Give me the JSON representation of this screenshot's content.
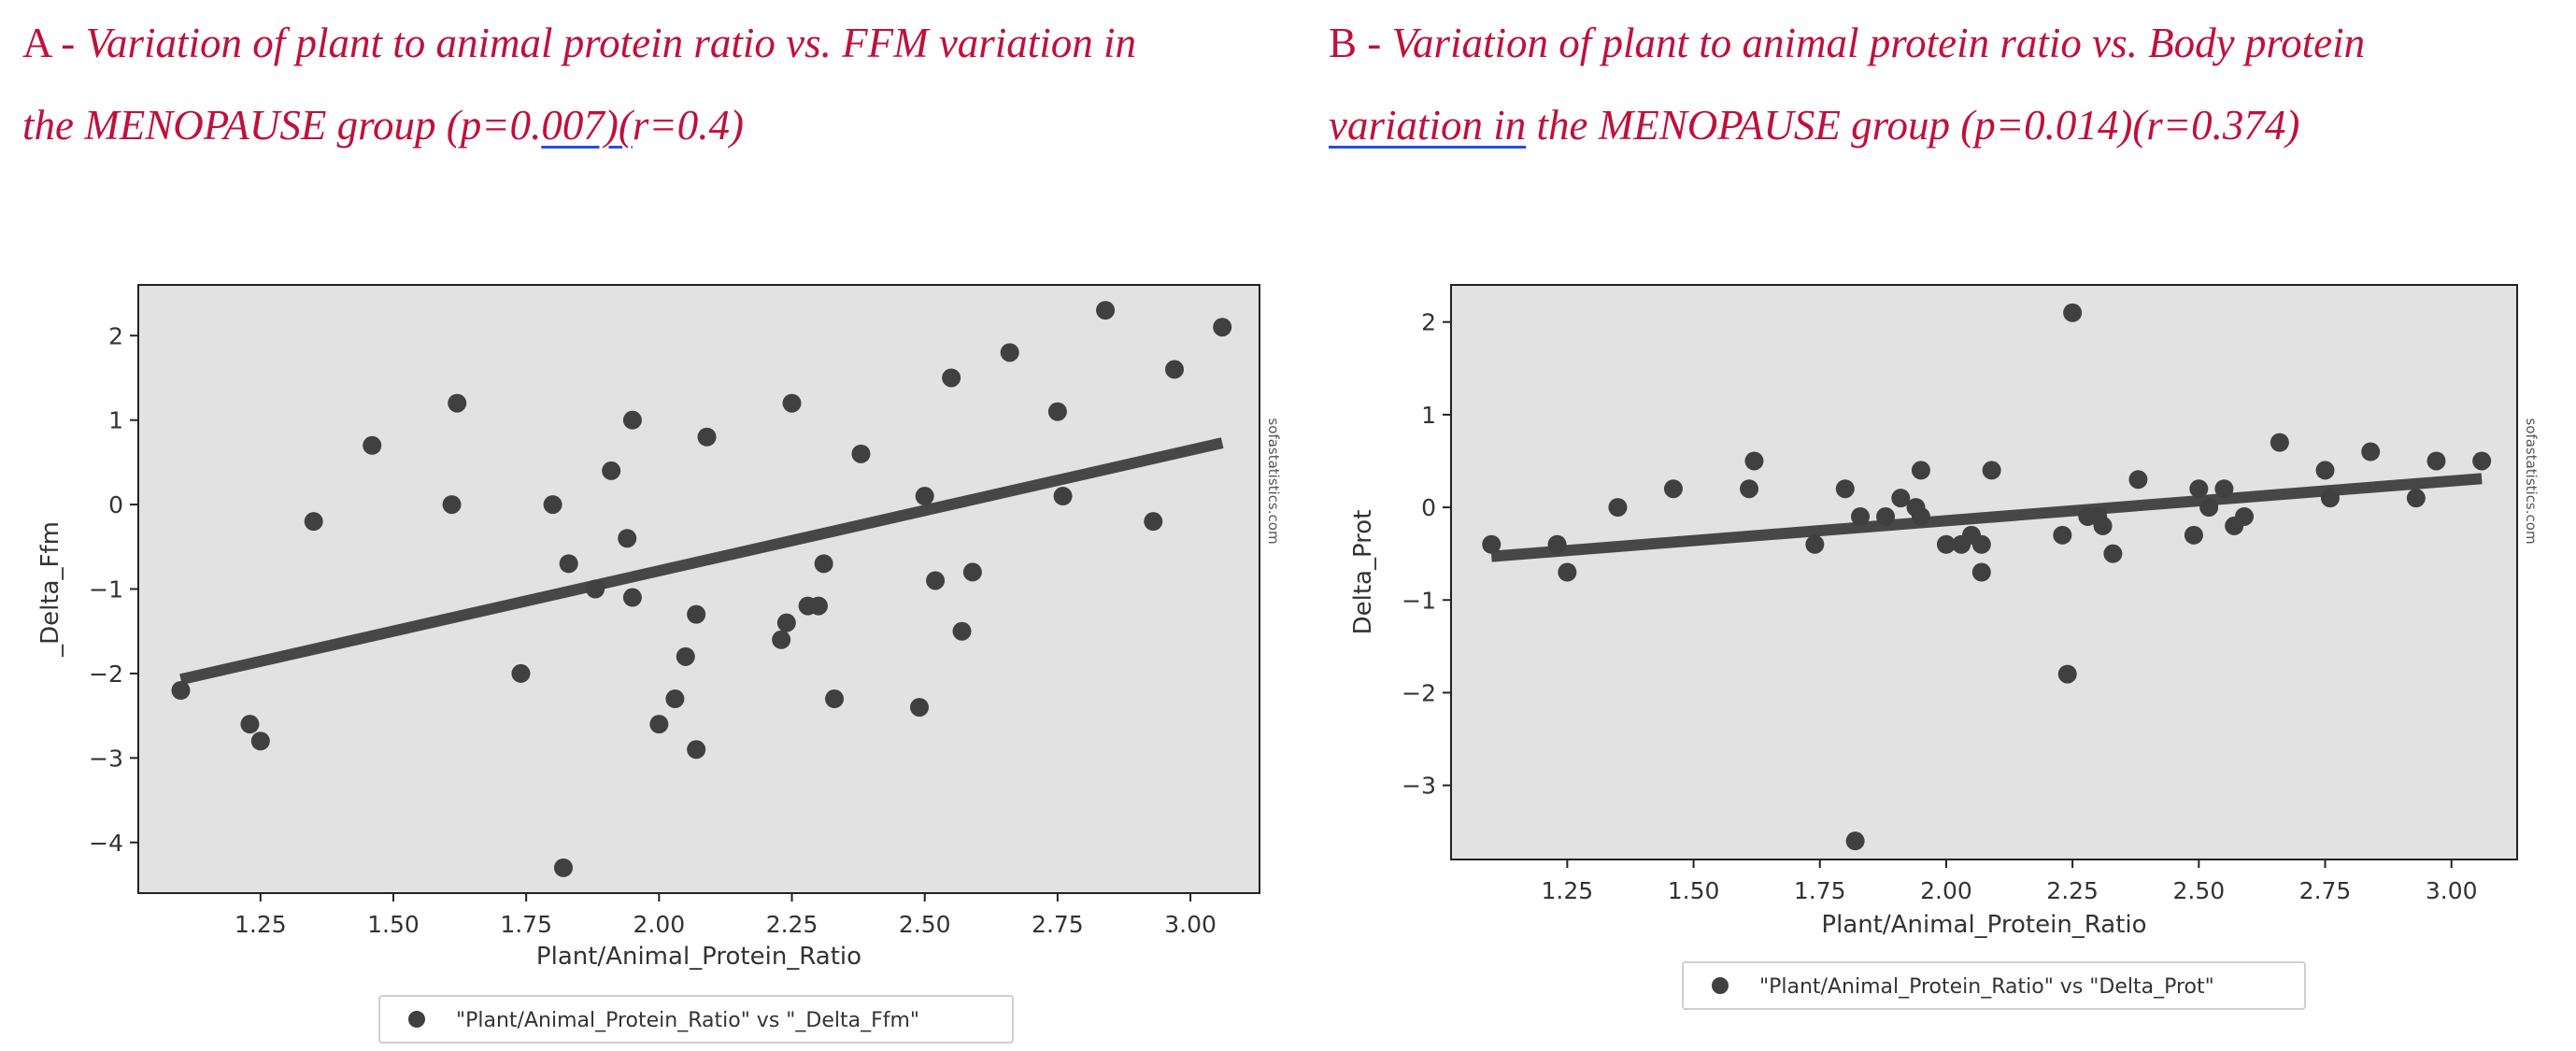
{
  "panels": [
    {
      "title_prefix": "A - ",
      "title_line1": "Variation of plant to animal protein ratio vs. FFM variation in",
      "title_line2a": "the MENOPAUSE group (p=0.",
      "title_line2_ul": "007)(",
      "title_line2b": "r=0.4)"
    },
    {
      "title_prefix": "B - ",
      "title_line1": "Variation of plant to animal protein ratio vs. Body protein",
      "title_line2_ul": "variation  in",
      "title_line2b": " the MENOPAUSE group (p=0.014)(r=0.374)"
    }
  ],
  "colors": {
    "title": "#c0103c",
    "plot_bg": "#e2e2e2",
    "point": "#404040",
    "line": "#474747",
    "axis": "#222222"
  },
  "chart_data": [
    {
      "type": "scatter",
      "xlabel": "Plant/Animal_Protein_Ratio",
      "ylabel": "_Delta_Ffm",
      "watermark": "sofastatistics.com",
      "legend": "\"Plant/Animal_Protein_Ratio\" vs \"_Delta_Ffm\"",
      "legend_position": "bottom-center",
      "xlim": [
        1.02,
        3.13
      ],
      "ylim": [
        -4.6,
        2.6
      ],
      "xticks": [
        1.25,
        1.5,
        1.75,
        2.0,
        2.25,
        2.5,
        2.75,
        3.0
      ],
      "xtick_labels": [
        "1.25",
        "1.50",
        "1.75",
        "2.00",
        "2.25",
        "2.50",
        "2.75",
        "3.00"
      ],
      "yticks": [
        2,
        1,
        0,
        -1,
        -2,
        -3,
        -4
      ],
      "ytick_labels": [
        "2",
        "1",
        "0",
        "−1",
        "−2",
        "−3",
        "−4"
      ],
      "points": [
        [
          1.1,
          -2.2
        ],
        [
          1.23,
          -2.6
        ],
        [
          1.25,
          -2.8
        ],
        [
          1.35,
          -0.2
        ],
        [
          1.46,
          0.7
        ],
        [
          1.61,
          0.0
        ],
        [
          1.62,
          1.2
        ],
        [
          1.74,
          -2.0
        ],
        [
          1.8,
          0.0
        ],
        [
          1.82,
          -4.3
        ],
        [
          1.83,
          -0.7
        ],
        [
          1.88,
          -1.0
        ],
        [
          1.91,
          0.4
        ],
        [
          1.94,
          -0.4
        ],
        [
          1.95,
          -1.1
        ],
        [
          1.95,
          1.0
        ],
        [
          2.0,
          -2.6
        ],
        [
          2.03,
          -2.3
        ],
        [
          2.05,
          -1.8
        ],
        [
          2.07,
          -1.3
        ],
        [
          2.07,
          -2.9
        ],
        [
          2.09,
          0.8
        ],
        [
          2.23,
          -1.6
        ],
        [
          2.24,
          -1.4
        ],
        [
          2.25,
          1.2
        ],
        [
          2.28,
          -1.2
        ],
        [
          2.3,
          -1.2
        ],
        [
          2.31,
          -0.7
        ],
        [
          2.33,
          -2.3
        ],
        [
          2.38,
          0.6
        ],
        [
          2.49,
          -2.4
        ],
        [
          2.5,
          0.1
        ],
        [
          2.52,
          -0.9
        ],
        [
          2.55,
          1.5
        ],
        [
          2.57,
          -1.5
        ],
        [
          2.59,
          -0.8
        ],
        [
          2.66,
          1.8
        ],
        [
          2.75,
          1.1
        ],
        [
          2.76,
          0.1
        ],
        [
          2.84,
          2.3
        ],
        [
          2.93,
          -0.2
        ],
        [
          2.97,
          1.6
        ],
        [
          3.06,
          2.1
        ]
      ],
      "trend": [
        [
          1.1,
          -2.07
        ],
        [
          3.06,
          0.73
        ]
      ]
    },
    {
      "type": "scatter",
      "xlabel": "Plant/Animal_Protein_Ratio",
      "ylabel": "Delta_Prot",
      "watermark": "sofastatistics.com",
      "legend": "\"Plant/Animal_Protein_Ratio\" vs \"Delta_Prot\"",
      "legend_position": "bottom-center",
      "xlim": [
        1.02,
        3.13
      ],
      "ylim": [
        -3.8,
        2.4
      ],
      "xticks": [
        1.25,
        1.5,
        1.75,
        2.0,
        2.25,
        2.5,
        2.75,
        3.0
      ],
      "xtick_labels": [
        "1.25",
        "1.50",
        "1.75",
        "2.00",
        "2.25",
        "2.50",
        "2.75",
        "3.00"
      ],
      "yticks": [
        2,
        1,
        0,
        -1,
        -2,
        -3
      ],
      "ytick_labels": [
        "2",
        "1",
        "0",
        "−1",
        "−2",
        "−3"
      ],
      "points": [
        [
          1.1,
          -0.4
        ],
        [
          1.23,
          -0.4
        ],
        [
          1.25,
          -0.7
        ],
        [
          1.35,
          0.0
        ],
        [
          1.46,
          0.2
        ],
        [
          1.61,
          0.2
        ],
        [
          1.62,
          0.5
        ],
        [
          1.74,
          -0.4
        ],
        [
          1.8,
          0.2
        ],
        [
          1.82,
          -3.6
        ],
        [
          1.83,
          -0.1
        ],
        [
          1.88,
          -0.1
        ],
        [
          1.91,
          0.1
        ],
        [
          1.94,
          0.0
        ],
        [
          1.95,
          0.4
        ],
        [
          1.95,
          -0.1
        ],
        [
          2.0,
          -0.4
        ],
        [
          2.03,
          -0.4
        ],
        [
          2.05,
          -0.3
        ],
        [
          2.07,
          -0.4
        ],
        [
          2.07,
          -0.7
        ],
        [
          2.09,
          0.4
        ],
        [
          2.23,
          -0.3
        ],
        [
          2.24,
          -1.8
        ],
        [
          2.25,
          2.1
        ],
        [
          2.28,
          -0.1
        ],
        [
          2.3,
          -0.1
        ],
        [
          2.31,
          -0.2
        ],
        [
          2.33,
          -0.5
        ],
        [
          2.38,
          0.3
        ],
        [
          2.49,
          -0.3
        ],
        [
          2.5,
          0.2
        ],
        [
          2.52,
          0.0
        ],
        [
          2.55,
          0.2
        ],
        [
          2.57,
          -0.2
        ],
        [
          2.59,
          -0.1
        ],
        [
          2.66,
          0.7
        ],
        [
          2.75,
          0.4
        ],
        [
          2.76,
          0.1
        ],
        [
          2.84,
          0.6
        ],
        [
          2.93,
          0.1
        ],
        [
          2.97,
          0.5
        ],
        [
          3.06,
          0.5
        ]
      ],
      "trend": [
        [
          1.1,
          -0.53
        ],
        [
          3.06,
          0.31
        ]
      ]
    }
  ]
}
